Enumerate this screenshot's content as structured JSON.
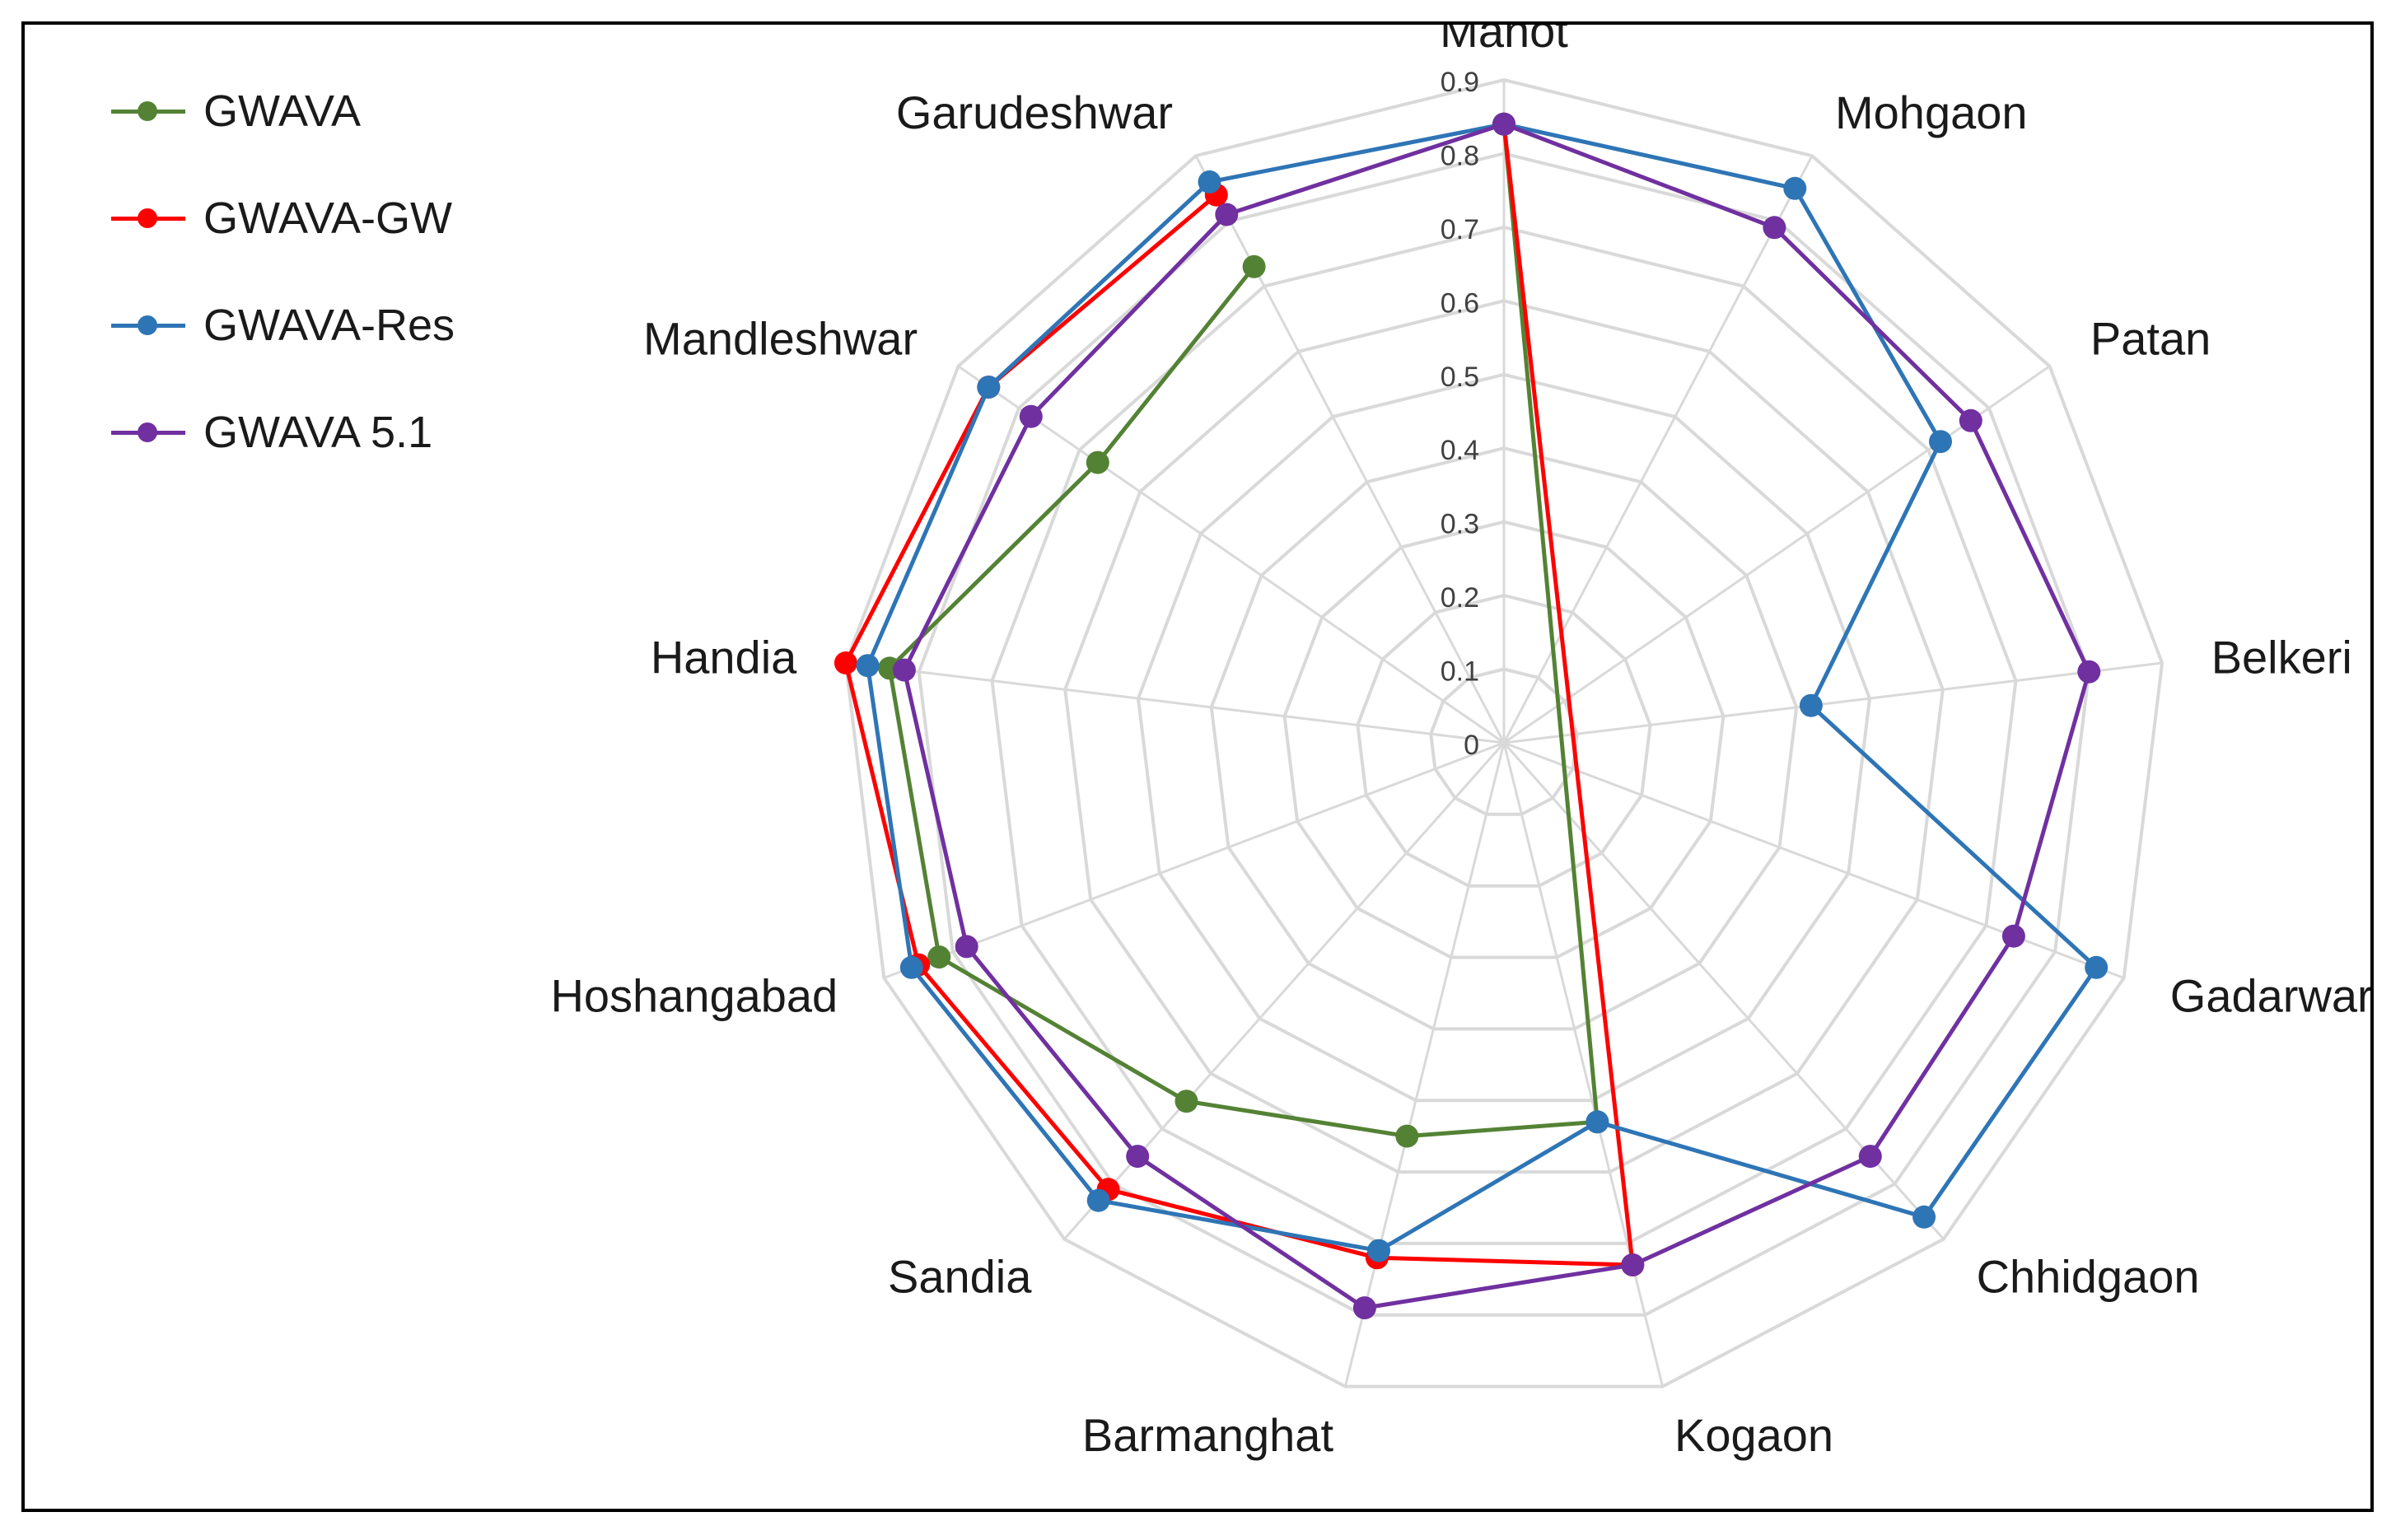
{
  "chart_data": {
    "type": "radar",
    "categories": [
      "Manot",
      "Mohgaon",
      "Patan",
      "Belkeri",
      "Gadarwara",
      "Chhidgaon",
      "Kogaon",
      "Barmanghat",
      "Sandia",
      "Hoshangabad",
      "Handia",
      "Mandleshwar",
      "Garudeshwar"
    ],
    "rlim": [
      0,
      0.9
    ],
    "ticks": [
      "0",
      "0.1",
      "0.2",
      "0.3",
      "0.4",
      "0.5",
      "0.6",
      "0.7",
      "0.8",
      "0.9"
    ],
    "grid": true,
    "legend_position": "top-left",
    "series": [
      {
        "name": "GWAVA",
        "color": "#548235",
        "values": [
          0.84,
          null,
          null,
          null,
          null,
          null,
          0.53,
          0.55,
          0.65,
          0.82,
          0.84,
          0.67,
          0.73
        ]
      },
      {
        "name": "GWAVA-GW",
        "color": "#ff0000",
        "values": [
          0.84,
          null,
          null,
          null,
          null,
          null,
          0.73,
          0.72,
          0.81,
          0.85,
          0.9,
          0.85,
          0.84
        ]
      },
      {
        "name": "GWAVA-Res",
        "color": "#2e75b6",
        "values": [
          0.84,
          0.85,
          0.72,
          0.42,
          0.86,
          0.86,
          0.53,
          0.71,
          0.83,
          0.86,
          0.87,
          0.85,
          0.86
        ]
      },
      {
        "name": "GWAVA 5.1",
        "color": "#7030a0",
        "values": [
          0.84,
          0.79,
          0.77,
          0.8,
          0.74,
          0.75,
          0.73,
          0.79,
          0.75,
          0.78,
          0.82,
          0.78,
          0.81
        ]
      }
    ]
  }
}
